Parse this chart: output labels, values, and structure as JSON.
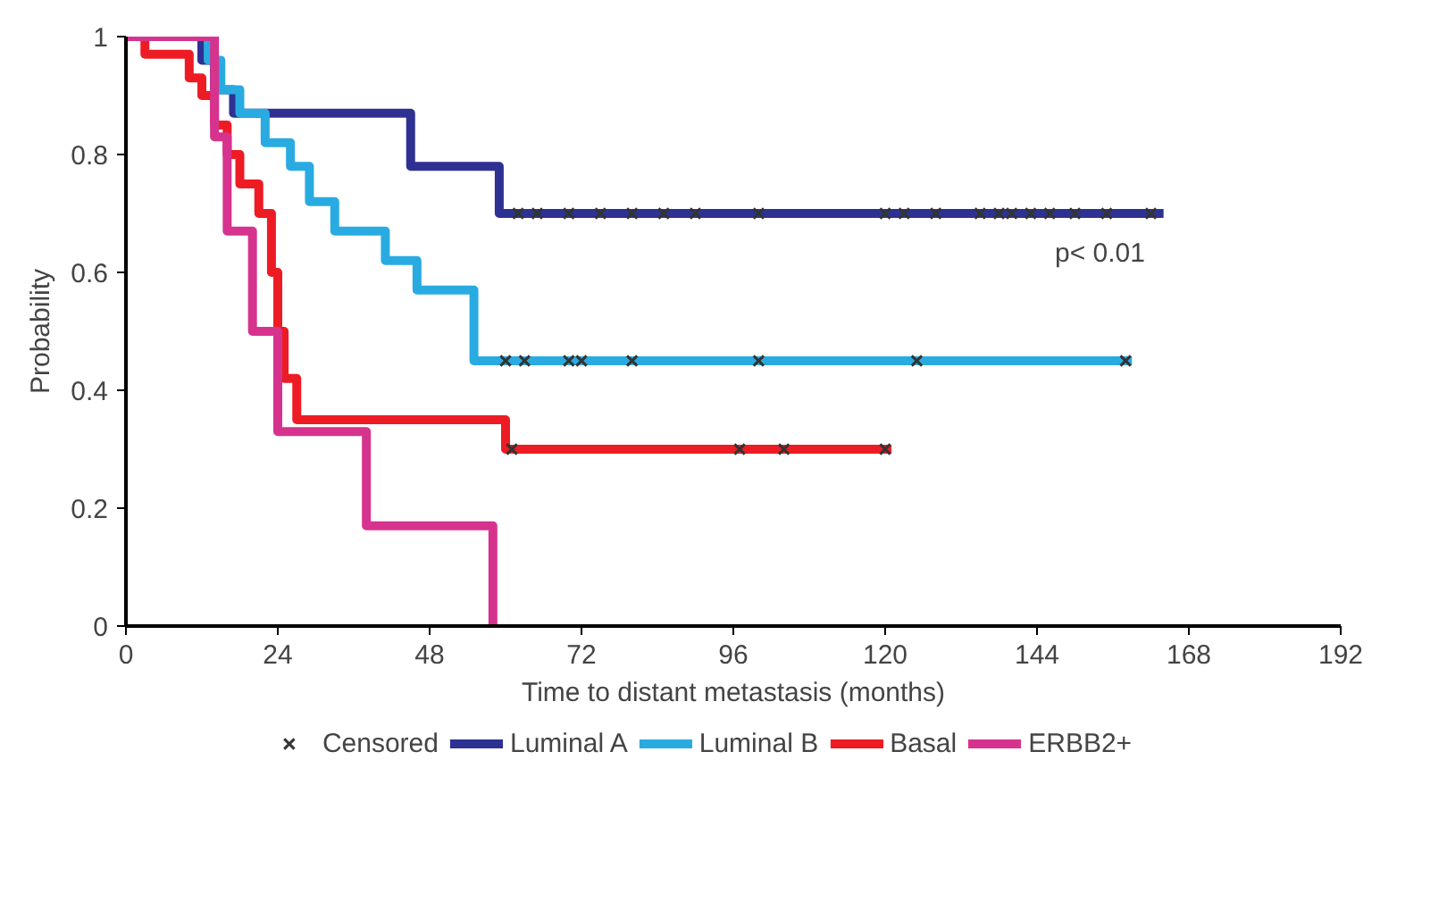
{
  "chart_data": {
    "type": "step",
    "xlabel": "Time to distant metastasis (months)",
    "ylabel": "Probability",
    "xlim": [
      0,
      192
    ],
    "xticks": [
      0,
      24,
      48,
      72,
      96,
      120,
      144,
      168,
      192
    ],
    "ylim": [
      0,
      1
    ],
    "yticks": [
      0,
      0.2,
      0.4,
      0.6,
      0.8,
      1
    ],
    "grid": false,
    "legend": "bottom",
    "annotations": [
      "p< 0.01"
    ],
    "series": [
      {
        "name": "Censored",
        "type": "scatter",
        "marker": "cross",
        "color": "#333333",
        "x": [
          62,
          65,
          70,
          75,
          80,
          85,
          90,
          100,
          120,
          123,
          128,
          135,
          138,
          140,
          143,
          146,
          150,
          155,
          162,
          60,
          63,
          70,
          72,
          80,
          100,
          125,
          158,
          61,
          97,
          104,
          120
        ],
        "values": [
          0.7,
          0.7,
          0.7,
          0.7,
          0.7,
          0.7,
          0.7,
          0.7,
          0.7,
          0.7,
          0.7,
          0.7,
          0.7,
          0.7,
          0.7,
          0.7,
          0.7,
          0.7,
          0.7,
          0.45,
          0.45,
          0.45,
          0.45,
          0.45,
          0.45,
          0.45,
          0.45,
          0.3,
          0.3,
          0.3,
          0.3
        ]
      },
      {
        "name": "Luminal A",
        "color": "#2e3192",
        "x": [
          0,
          12,
          14,
          17,
          45,
          59,
          164
        ],
        "values": [
          1,
          0.96,
          0.91,
          0.87,
          0.78,
          0.7,
          0.7
        ]
      },
      {
        "name": "Luminal B",
        "color": "#29abe2",
        "x": [
          0,
          13,
          15,
          18,
          22,
          26,
          29,
          33,
          41,
          46,
          55,
          159
        ],
        "values": [
          1,
          0.96,
          0.91,
          0.87,
          0.82,
          0.78,
          0.72,
          0.67,
          0.62,
          0.57,
          0.45,
          0.45
        ]
      },
      {
        "name": "Basal",
        "color": "#ed1c24",
        "x": [
          0,
          3,
          10,
          12,
          14,
          16,
          18,
          21,
          23,
          24,
          25,
          27,
          60,
          121
        ],
        "values": [
          1,
          0.97,
          0.93,
          0.9,
          0.85,
          0.8,
          0.75,
          0.7,
          0.6,
          0.5,
          0.42,
          0.35,
          0.3,
          0.3
        ]
      },
      {
        "name": "ERBB2+",
        "color": "#d6338f",
        "x": [
          0,
          14,
          16,
          20,
          24,
          38,
          58
        ],
        "values": [
          1,
          0.83,
          0.67,
          0.5,
          0.33,
          0.17,
          0
        ]
      }
    ]
  }
}
